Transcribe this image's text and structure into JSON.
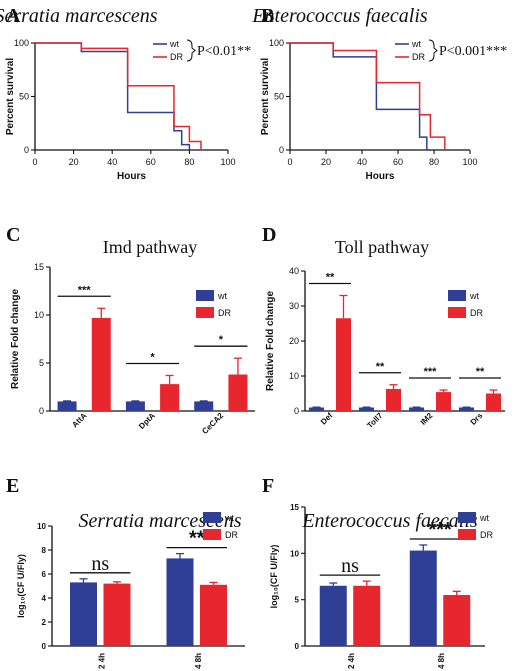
{
  "colors": {
    "wt": "#2e3f95",
    "dr": "#e8262d",
    "axis": "#111111"
  },
  "chart_data": [
    {
      "panel": "A",
      "type": "line",
      "step": true,
      "title": "Serratia marcescens",
      "xlabel": "Hours",
      "ylabel": "Percent survival",
      "xlim": [
        0,
        100
      ],
      "ylim": [
        0,
        100
      ],
      "xticks": [
        "0",
        "20",
        "40",
        "60",
        "80",
        "100"
      ],
      "yticks": [
        "0",
        "50",
        "100"
      ],
      "pvalue": "P<0.01**",
      "series": [
        {
          "name": "wt",
          "color": "#2e3f95",
          "x": [
            0,
            24,
            48,
            72,
            76,
            80
          ],
          "y": [
            100,
            92,
            35,
            18,
            5,
            0
          ]
        },
        {
          "name": "DR",
          "color": "#e8262d",
          "x": [
            0,
            24,
            48,
            72,
            80,
            86
          ],
          "y": [
            100,
            95,
            60,
            22,
            8,
            0
          ]
        }
      ]
    },
    {
      "panel": "B",
      "type": "line",
      "step": true,
      "title": "Enterococcus faecalis",
      "xlabel": "Hours",
      "ylabel": "Percent survival",
      "xlim": [
        0,
        100
      ],
      "ylim": [
        0,
        100
      ],
      "xticks": [
        "0",
        "20",
        "40",
        "60",
        "80",
        "100"
      ],
      "yticks": [
        "0",
        "50",
        "100"
      ],
      "pvalue": "P<0.001***",
      "series": [
        {
          "name": "wt",
          "color": "#2e3f95",
          "x": [
            0,
            24,
            48,
            72,
            76,
            78
          ],
          "y": [
            100,
            87,
            38,
            12,
            0,
            0
          ]
        },
        {
          "name": "DR",
          "color": "#e8262d",
          "x": [
            0,
            24,
            48,
            72,
            78,
            86
          ],
          "y": [
            100,
            93,
            63,
            33,
            12,
            0
          ]
        }
      ]
    },
    {
      "panel": "C",
      "type": "bar",
      "title": "Imd pathway",
      "xlabel": "",
      "ylabel": "Relative Fold change",
      "ylim": [
        0,
        15
      ],
      "yticks": [
        "0",
        "5",
        "10",
        "15"
      ],
      "categories": [
        "AttA",
        "DptA",
        "CeCA2"
      ],
      "series": [
        {
          "name": "wt",
          "color": "#2e3f95",
          "values": [
            1,
            1,
            1
          ],
          "errors": [
            0.05,
            0.05,
            0.05
          ]
        },
        {
          "name": "DR",
          "color": "#e8262d",
          "values": [
            9.7,
            2.8,
            3.8
          ],
          "errors": [
            1.0,
            0.9,
            1.7
          ]
        }
      ],
      "significance": [
        "***",
        "*",
        "*"
      ]
    },
    {
      "panel": "D",
      "type": "bar",
      "title": "Toll pathway",
      "xlabel": "",
      "ylabel": "Relative Fold change",
      "ylim": [
        0,
        40
      ],
      "yticks": [
        "0",
        "10",
        "20",
        "30",
        "40"
      ],
      "categories": [
        "Def",
        "Toll7",
        "IM2",
        "Drs"
      ],
      "series": [
        {
          "name": "wt",
          "color": "#2e3f95",
          "values": [
            1,
            1,
            1,
            1
          ],
          "errors": [
            0.1,
            0.1,
            0.1,
            0.1
          ]
        },
        {
          "name": "DR",
          "color": "#e8262d",
          "values": [
            26.5,
            6.3,
            5.4,
            5.0
          ],
          "errors": [
            6.5,
            1.2,
            0.6,
            1.0
          ]
        }
      ],
      "significance": [
        "**",
        "**",
        "***",
        "**"
      ]
    },
    {
      "panel": "E",
      "type": "bar",
      "title": "Serratia marcescens",
      "xlabel": "",
      "ylabel": "log₁₀(CF U/Fly)",
      "ylim": [
        0,
        10
      ],
      "yticks": [
        "0",
        "2",
        "4",
        "6",
        "8",
        "10"
      ],
      "categories": [
        "2 4h",
        "4 8h"
      ],
      "series": [
        {
          "name": "wt",
          "color": "#2e3f95",
          "values": [
            5.3,
            7.3
          ],
          "errors": [
            0.3,
            0.4
          ]
        },
        {
          "name": "DR",
          "color": "#e8262d",
          "values": [
            5.2,
            5.1
          ],
          "errors": [
            0.15,
            0.2
          ]
        }
      ],
      "significance": [
        "ns",
        "**"
      ]
    },
    {
      "panel": "F",
      "type": "bar",
      "title": "Enterococcus faecalis",
      "xlabel": "",
      "ylabel": "log₁₀(CF U/Fly)",
      "ylim": [
        0,
        15
      ],
      "yticks": [
        "0",
        "5",
        "10",
        "15"
      ],
      "categories": [
        "2 4h",
        "4 8h"
      ],
      "series": [
        {
          "name": "wt",
          "color": "#2e3f95",
          "values": [
            6.5,
            10.3
          ],
          "errors": [
            0.3,
            0.6
          ]
        },
        {
          "name": "DR",
          "color": "#e8262d",
          "values": [
            6.5,
            5.5
          ],
          "errors": [
            0.5,
            0.4
          ]
        }
      ],
      "significance": [
        "ns",
        "***"
      ]
    }
  ]
}
